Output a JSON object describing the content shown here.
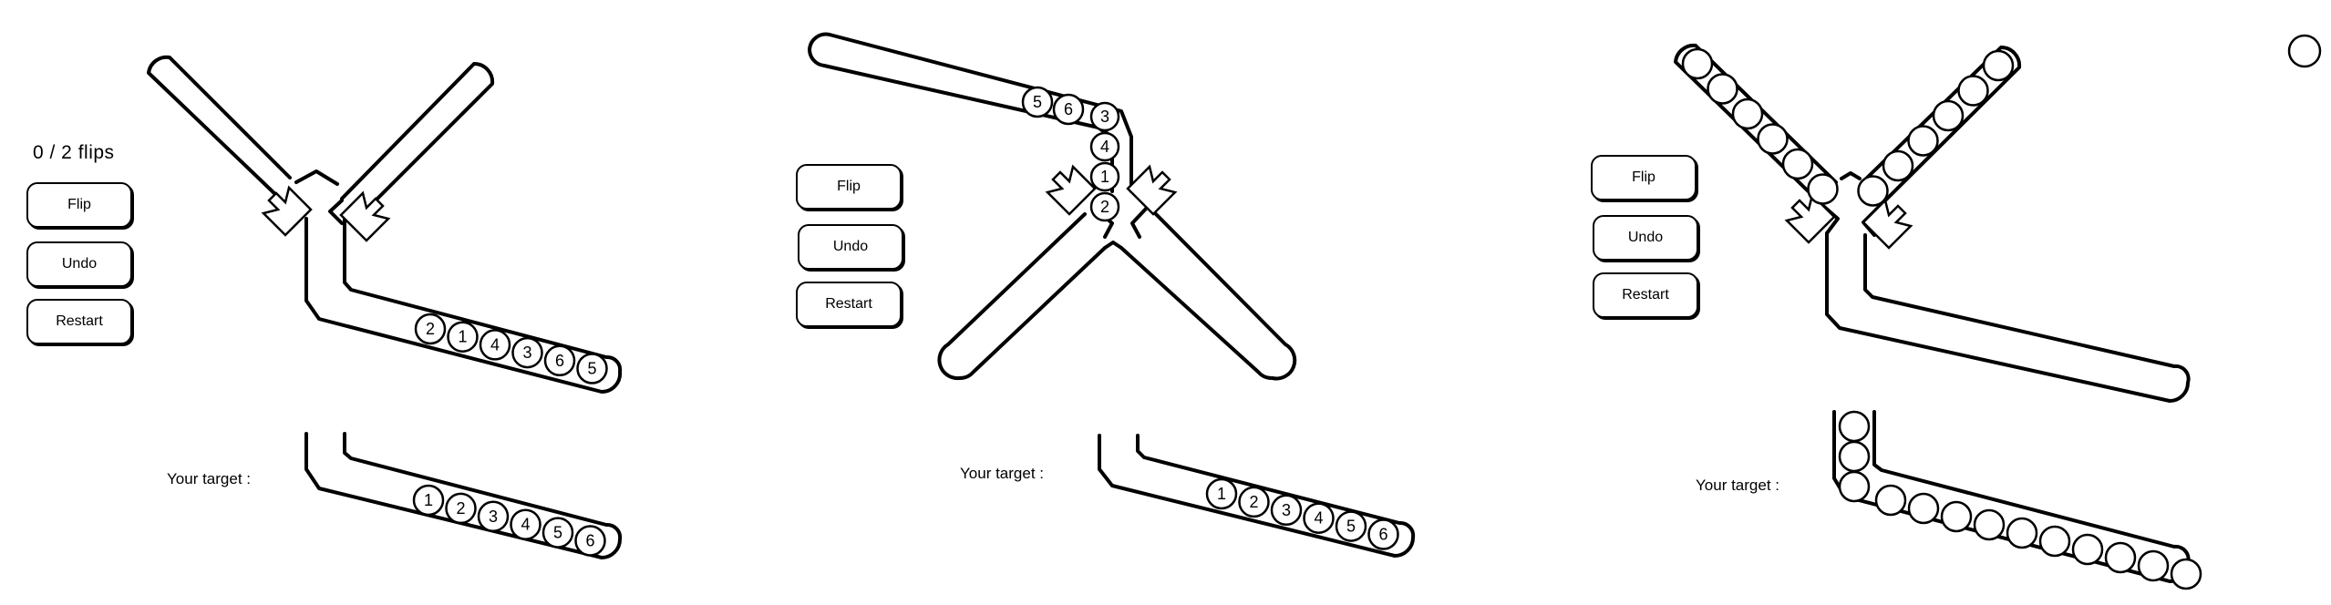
{
  "panels": [
    {
      "flip_counter": "0 / 2  flips",
      "buttons": {
        "flip": "Flip",
        "undo": "Undo",
        "restart": "Restart"
      },
      "target_label": "Your target :",
      "current_balls": [
        "2",
        "1",
        "4",
        "3",
        "6",
        "5"
      ],
      "target_balls": [
        "1",
        "2",
        "3",
        "4",
        "5",
        "6"
      ]
    },
    {
      "buttons": {
        "flip": "Flip",
        "undo": "Undo",
        "restart": "Restart"
      },
      "target_label": "Your target :",
      "top_track_balls": [
        "5",
        "6"
      ],
      "vertical_balls": [
        "3",
        "4",
        "1",
        "2"
      ],
      "target_balls": [
        "1",
        "2",
        "3",
        "4",
        "5",
        "6"
      ]
    },
    {
      "buttons": {
        "flip": "Flip",
        "undo": "Undo",
        "restart": "Restart"
      },
      "target_label": "Your target :",
      "left_arm_ball_count": 6,
      "right_arm_ball_count": 6,
      "target_vertical_ball_count": 3,
      "target_diagonal_ball_count": 10
    }
  ],
  "icons": {
    "arrow": "diagonal-arrow-icon",
    "settings_circle": "circle-icon"
  }
}
